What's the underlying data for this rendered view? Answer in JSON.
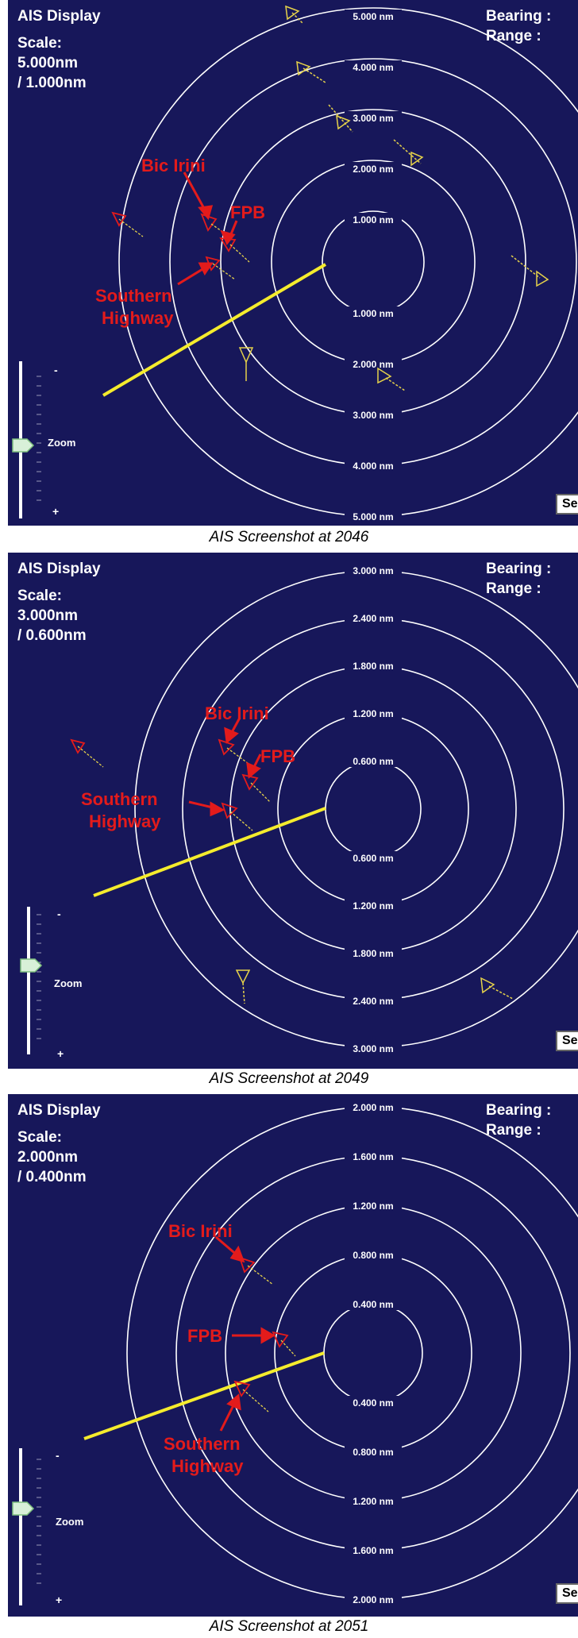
{
  "colors": {
    "background": "#17175a",
    "ring": "#ffffff",
    "target": "#e6d24a",
    "heading_line": "#f5ec2d",
    "annotation": "#e31b1b"
  },
  "icons": {
    "vessel": "triangle-vessel-icon",
    "zoom_handle": "slider-handle-icon"
  },
  "panels": [
    {
      "title": "AIS Display",
      "scale_label": "Scale:",
      "scale_value": "5.000nm",
      "scale_sub": "/ 1.000nm",
      "bearing_label": "Bearing :",
      "range_label": "Range :",
      "zoom_label": "Zoom",
      "zoom_minus": "-",
      "zoom_plus": "+",
      "set_button": "Se",
      "caption": "AIS Screenshot at 2046",
      "upper_ring_labels": [
        "5.000 nm",
        "4.000 nm",
        "3.000 nm",
        "2.000 nm",
        "1.000 nm"
      ],
      "lower_ring_labels": [
        "1.000 nm",
        "2.000 nm",
        "3.000 nm",
        "4.000 nm",
        "5.000 nm"
      ],
      "annotations": {
        "bic_irini": "Bic Irini",
        "fpb": "FPB",
        "southern_line1": "Southern",
        "southern_line2": "Highway"
      }
    },
    {
      "title": "AIS Display",
      "scale_label": "Scale:",
      "scale_value": "3.000nm",
      "scale_sub": "/ 0.600nm",
      "bearing_label": "Bearing :",
      "range_label": "Range :",
      "zoom_label": "Zoom",
      "zoom_minus": "-",
      "zoom_plus": "+",
      "set_button": "Se",
      "caption": "AIS Screenshot at 2049",
      "upper_ring_labels": [
        "3.000 nm",
        "2.400 nm",
        "1.800 nm",
        "1.200 nm",
        "0.600 nm"
      ],
      "lower_ring_labels": [
        "0.600 nm",
        "1.200 nm",
        "1.800 nm",
        "2.400 nm",
        "3.000 nm"
      ],
      "annotations": {
        "bic_irini": "Bic Irini",
        "fpb": "FPB",
        "southern_line1": "Southern",
        "southern_line2": "Highway"
      }
    },
    {
      "title": "AIS Display",
      "scale_label": "Scale:",
      "scale_value": "2.000nm",
      "scale_sub": "/ 0.400nm",
      "bearing_label": "Bearing :",
      "range_label": "Range :",
      "zoom_label": "Zoom",
      "zoom_minus": "-",
      "zoom_plus": "+",
      "set_button": "Se",
      "caption": "AIS Screenshot at 2051",
      "upper_ring_labels": [
        "2.000 nm",
        "1.600 nm",
        "1.200 nm",
        "0.800 nm",
        "0.400 nm"
      ],
      "lower_ring_labels": [
        "0.400 nm",
        "0.800 nm",
        "1.200 nm",
        "1.600 nm",
        "2.000 nm"
      ],
      "annotations": {
        "bic_irini": "Bic Irini",
        "fpb": "FPB",
        "southern_line1": "Southern",
        "southern_line2": "Highway"
      }
    }
  ]
}
